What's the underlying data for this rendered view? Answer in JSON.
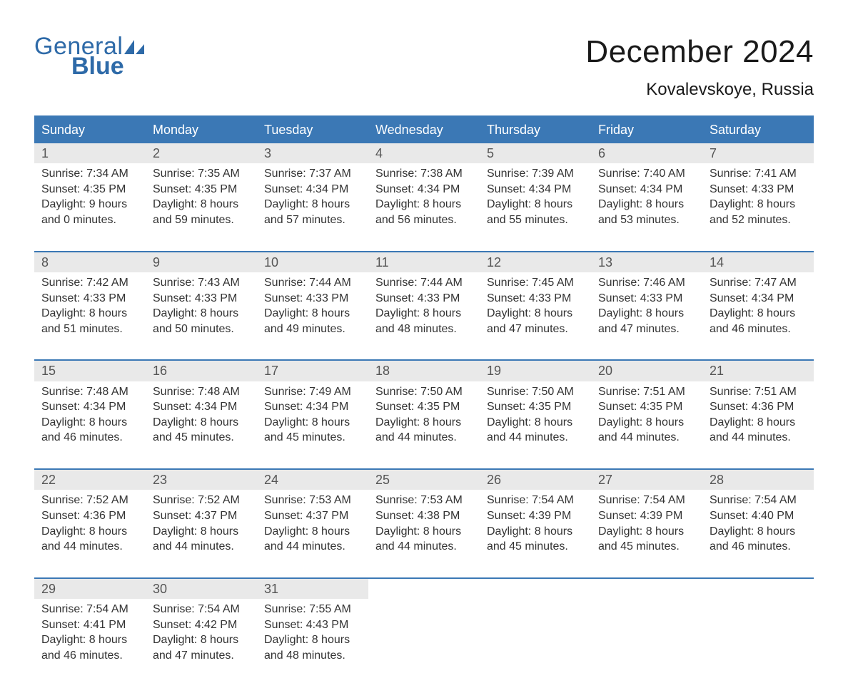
{
  "logo": {
    "text1": "General",
    "text2": "Blue"
  },
  "title": "December 2024",
  "subtitle": "Kovalevskoye, Russia",
  "weekdays": [
    "Sunday",
    "Monday",
    "Tuesday",
    "Wednesday",
    "Thursday",
    "Friday",
    "Saturday"
  ],
  "colors": {
    "header_bg": "#3b78b5",
    "header_text": "#ffffff",
    "daynum_bg": "#e9e9e9",
    "week_border": "#3b78b5",
    "title_color": "#1a1a1a",
    "logo_color": "#2e6aa8"
  },
  "weeks": [
    [
      {
        "n": "1",
        "sunrise": "Sunrise: 7:34 AM",
        "sunset": "Sunset: 4:35 PM",
        "d1": "Daylight: 9 hours",
        "d2": "and 0 minutes."
      },
      {
        "n": "2",
        "sunrise": "Sunrise: 7:35 AM",
        "sunset": "Sunset: 4:35 PM",
        "d1": "Daylight: 8 hours",
        "d2": "and 59 minutes."
      },
      {
        "n": "3",
        "sunrise": "Sunrise: 7:37 AM",
        "sunset": "Sunset: 4:34 PM",
        "d1": "Daylight: 8 hours",
        "d2": "and 57 minutes."
      },
      {
        "n": "4",
        "sunrise": "Sunrise: 7:38 AM",
        "sunset": "Sunset: 4:34 PM",
        "d1": "Daylight: 8 hours",
        "d2": "and 56 minutes."
      },
      {
        "n": "5",
        "sunrise": "Sunrise: 7:39 AM",
        "sunset": "Sunset: 4:34 PM",
        "d1": "Daylight: 8 hours",
        "d2": "and 55 minutes."
      },
      {
        "n": "6",
        "sunrise": "Sunrise: 7:40 AM",
        "sunset": "Sunset: 4:34 PM",
        "d1": "Daylight: 8 hours",
        "d2": "and 53 minutes."
      },
      {
        "n": "7",
        "sunrise": "Sunrise: 7:41 AM",
        "sunset": "Sunset: 4:33 PM",
        "d1": "Daylight: 8 hours",
        "d2": "and 52 minutes."
      }
    ],
    [
      {
        "n": "8",
        "sunrise": "Sunrise: 7:42 AM",
        "sunset": "Sunset: 4:33 PM",
        "d1": "Daylight: 8 hours",
        "d2": "and 51 minutes."
      },
      {
        "n": "9",
        "sunrise": "Sunrise: 7:43 AM",
        "sunset": "Sunset: 4:33 PM",
        "d1": "Daylight: 8 hours",
        "d2": "and 50 minutes."
      },
      {
        "n": "10",
        "sunrise": "Sunrise: 7:44 AM",
        "sunset": "Sunset: 4:33 PM",
        "d1": "Daylight: 8 hours",
        "d2": "and 49 minutes."
      },
      {
        "n": "11",
        "sunrise": "Sunrise: 7:44 AM",
        "sunset": "Sunset: 4:33 PM",
        "d1": "Daylight: 8 hours",
        "d2": "and 48 minutes."
      },
      {
        "n": "12",
        "sunrise": "Sunrise: 7:45 AM",
        "sunset": "Sunset: 4:33 PM",
        "d1": "Daylight: 8 hours",
        "d2": "and 47 minutes."
      },
      {
        "n": "13",
        "sunrise": "Sunrise: 7:46 AM",
        "sunset": "Sunset: 4:33 PM",
        "d1": "Daylight: 8 hours",
        "d2": "and 47 minutes."
      },
      {
        "n": "14",
        "sunrise": "Sunrise: 7:47 AM",
        "sunset": "Sunset: 4:34 PM",
        "d1": "Daylight: 8 hours",
        "d2": "and 46 minutes."
      }
    ],
    [
      {
        "n": "15",
        "sunrise": "Sunrise: 7:48 AM",
        "sunset": "Sunset: 4:34 PM",
        "d1": "Daylight: 8 hours",
        "d2": "and 46 minutes."
      },
      {
        "n": "16",
        "sunrise": "Sunrise: 7:48 AM",
        "sunset": "Sunset: 4:34 PM",
        "d1": "Daylight: 8 hours",
        "d2": "and 45 minutes."
      },
      {
        "n": "17",
        "sunrise": "Sunrise: 7:49 AM",
        "sunset": "Sunset: 4:34 PM",
        "d1": "Daylight: 8 hours",
        "d2": "and 45 minutes."
      },
      {
        "n": "18",
        "sunrise": "Sunrise: 7:50 AM",
        "sunset": "Sunset: 4:35 PM",
        "d1": "Daylight: 8 hours",
        "d2": "and 44 minutes."
      },
      {
        "n": "19",
        "sunrise": "Sunrise: 7:50 AM",
        "sunset": "Sunset: 4:35 PM",
        "d1": "Daylight: 8 hours",
        "d2": "and 44 minutes."
      },
      {
        "n": "20",
        "sunrise": "Sunrise: 7:51 AM",
        "sunset": "Sunset: 4:35 PM",
        "d1": "Daylight: 8 hours",
        "d2": "and 44 minutes."
      },
      {
        "n": "21",
        "sunrise": "Sunrise: 7:51 AM",
        "sunset": "Sunset: 4:36 PM",
        "d1": "Daylight: 8 hours",
        "d2": "and 44 minutes."
      }
    ],
    [
      {
        "n": "22",
        "sunrise": "Sunrise: 7:52 AM",
        "sunset": "Sunset: 4:36 PM",
        "d1": "Daylight: 8 hours",
        "d2": "and 44 minutes."
      },
      {
        "n": "23",
        "sunrise": "Sunrise: 7:52 AM",
        "sunset": "Sunset: 4:37 PM",
        "d1": "Daylight: 8 hours",
        "d2": "and 44 minutes."
      },
      {
        "n": "24",
        "sunrise": "Sunrise: 7:53 AM",
        "sunset": "Sunset: 4:37 PM",
        "d1": "Daylight: 8 hours",
        "d2": "and 44 minutes."
      },
      {
        "n": "25",
        "sunrise": "Sunrise: 7:53 AM",
        "sunset": "Sunset: 4:38 PM",
        "d1": "Daylight: 8 hours",
        "d2": "and 44 minutes."
      },
      {
        "n": "26",
        "sunrise": "Sunrise: 7:54 AM",
        "sunset": "Sunset: 4:39 PM",
        "d1": "Daylight: 8 hours",
        "d2": "and 45 minutes."
      },
      {
        "n": "27",
        "sunrise": "Sunrise: 7:54 AM",
        "sunset": "Sunset: 4:39 PM",
        "d1": "Daylight: 8 hours",
        "d2": "and 45 minutes."
      },
      {
        "n": "28",
        "sunrise": "Sunrise: 7:54 AM",
        "sunset": "Sunset: 4:40 PM",
        "d1": "Daylight: 8 hours",
        "d2": "and 46 minutes."
      }
    ],
    [
      {
        "n": "29",
        "sunrise": "Sunrise: 7:54 AM",
        "sunset": "Sunset: 4:41 PM",
        "d1": "Daylight: 8 hours",
        "d2": "and 46 minutes."
      },
      {
        "n": "30",
        "sunrise": "Sunrise: 7:54 AM",
        "sunset": "Sunset: 4:42 PM",
        "d1": "Daylight: 8 hours",
        "d2": "and 47 minutes."
      },
      {
        "n": "31",
        "sunrise": "Sunrise: 7:55 AM",
        "sunset": "Sunset: 4:43 PM",
        "d1": "Daylight: 8 hours",
        "d2": "and 48 minutes."
      },
      null,
      null,
      null,
      null
    ]
  ]
}
